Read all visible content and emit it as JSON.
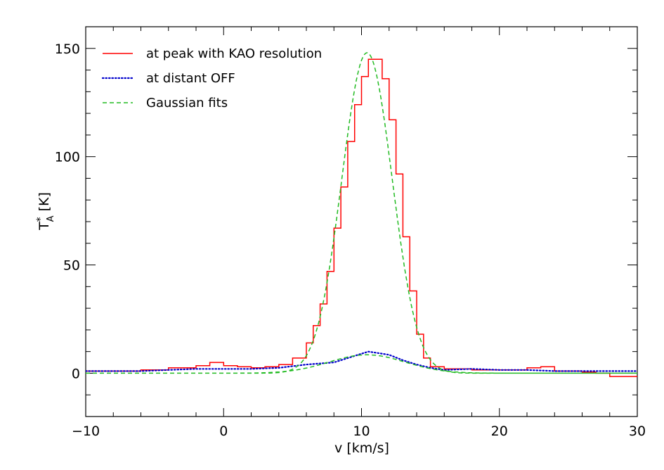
{
  "chart_data": {
    "type": "line",
    "title": "",
    "xlabel": "v [km/s]",
    "ylabel": {
      "main": "T",
      "sup": "*",
      "sub": "A",
      "unit": " [K]"
    },
    "xlim": [
      -10,
      30
    ],
    "ylim": [
      -20,
      160
    ],
    "xticks": [
      -10,
      0,
      10,
      20,
      30
    ],
    "xtick_labels": [
      "−10",
      "0",
      "10",
      "20",
      "30"
    ],
    "yticks": [
      0,
      50,
      100,
      150
    ],
    "ytick_labels": [
      "0",
      "50",
      "100",
      "150"
    ],
    "x_minor_step": 2,
    "y_minor_step": 10,
    "grid": false,
    "legend_position": "top-left",
    "series": [
      {
        "name": "at peak with KAO resolution",
        "color": "#ff0000",
        "style": "solid-step",
        "x": [
          -10,
          -8,
          -6,
          -4,
          -2,
          -1,
          0,
          1,
          2,
          3,
          4,
          5,
          6,
          6.5,
          7,
          7.5,
          8,
          8.5,
          9,
          9.5,
          10,
          10.5,
          11,
          11.5,
          12,
          12.5,
          13,
          13.5,
          14,
          14.5,
          15,
          16,
          18,
          20,
          22,
          23,
          24,
          26,
          27,
          28,
          30
        ],
        "y": [
          1,
          1,
          1.5,
          2.5,
          3.5,
          5,
          3.5,
          3,
          2.5,
          3,
          4,
          7,
          14,
          22,
          32,
          47,
          67,
          86,
          107,
          124,
          137,
          145,
          145,
          136,
          117,
          92,
          63,
          38,
          18,
          7,
          3,
          2,
          1.5,
          1.5,
          2.5,
          3,
          1,
          0.5,
          0,
          -1.5,
          -1.5
        ]
      },
      {
        "name": "at distant OFF",
        "color": "#0000cc",
        "style": "dotted",
        "x": [
          -10,
          -8,
          -6,
          -4,
          -2,
          0,
          2,
          4,
          6,
          7,
          8,
          9,
          10,
          10.5,
          11,
          11.5,
          12,
          13,
          14,
          15,
          16,
          18,
          20,
          22,
          24,
          26,
          28,
          30
        ],
        "y": [
          1,
          1,
          1,
          1.5,
          2,
          2,
          2,
          2.5,
          4,
          4.5,
          5,
          7,
          9,
          10,
          9.5,
          9,
          8.5,
          6,
          4,
          2.5,
          1.5,
          2,
          1.5,
          1.5,
          1,
          1,
          1,
          1
        ]
      },
      {
        "name": "Gaussian fits",
        "color": "#22bb22",
        "style": "dashed",
        "components": [
          {
            "amplitude": 148,
            "center": 10.4,
            "fwhm": 4.3
          },
          {
            "amplitude": 8.5,
            "center": 10.4,
            "fwhm": 6.5
          }
        ]
      }
    ]
  }
}
